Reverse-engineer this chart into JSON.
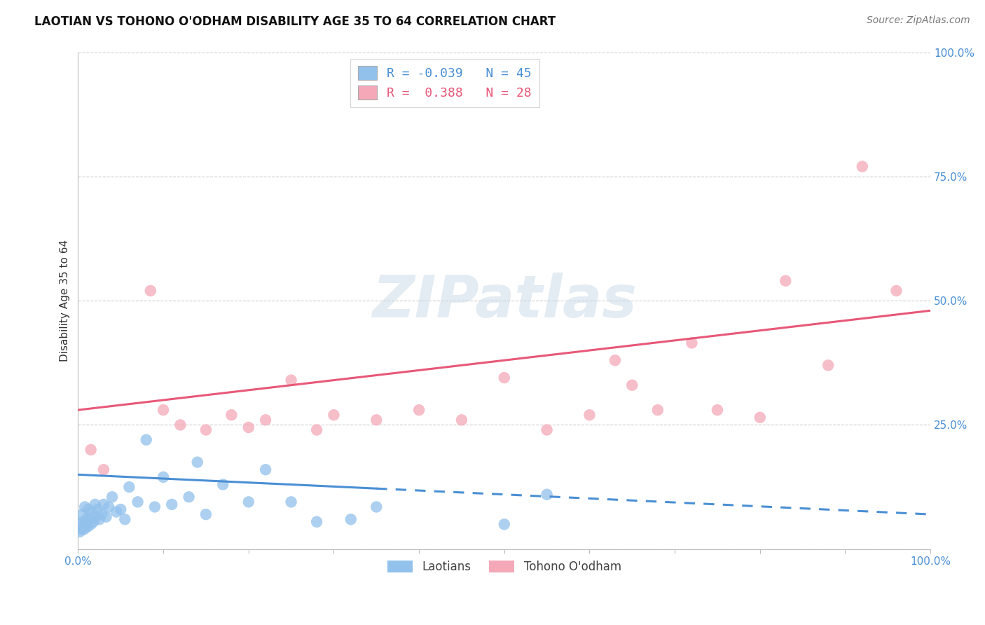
{
  "title": "LAOTIAN VS TOHONO O'ODHAM DISABILITY AGE 35 TO 64 CORRELATION CHART",
  "source": "Source: ZipAtlas.com",
  "ylabel": "Disability Age 35 to 64",
  "legend_label1": "Laotians",
  "legend_label2": "Tohono O'odham",
  "R1": -0.039,
  "N1": 45,
  "R2": 0.388,
  "N2": 28,
  "blue_color": "#92C1EC",
  "pink_color": "#F4A8B8",
  "blue_line_color": "#4A8FD4",
  "pink_line_color": "#E85878",
  "laotian_x": [
    0.2,
    0.3,
    0.4,
    0.5,
    0.6,
    0.7,
    0.8,
    0.9,
    1.0,
    1.1,
    1.2,
    1.3,
    1.5,
    1.6,
    1.8,
    2.0,
    2.1,
    2.3,
    2.5,
    2.8,
    3.0,
    3.3,
    3.6,
    4.0,
    4.5,
    5.0,
    5.5,
    6.0,
    7.0,
    8.0,
    9.0,
    10.0,
    11.0,
    13.0,
    14.0,
    15.0,
    17.0,
    20.0,
    22.0,
    25.0,
    28.0,
    32.0,
    35.0,
    50.0,
    55.0
  ],
  "laotian_y": [
    3.5,
    5.0,
    4.0,
    7.0,
    5.5,
    4.0,
    8.5,
    5.0,
    6.0,
    4.5,
    8.0,
    6.0,
    5.0,
    7.5,
    5.5,
    9.0,
    6.5,
    8.0,
    6.0,
    7.0,
    9.0,
    6.5,
    8.5,
    10.5,
    7.5,
    8.0,
    6.0,
    12.5,
    9.5,
    22.0,
    8.5,
    14.5,
    9.0,
    10.5,
    17.5,
    7.0,
    13.0,
    9.5,
    16.0,
    9.5,
    5.5,
    6.0,
    8.5,
    5.0,
    11.0
  ],
  "tohono_x": [
    1.5,
    3.0,
    8.5,
    10.0,
    12.0,
    15.0,
    18.0,
    20.0,
    22.0,
    25.0,
    28.0,
    30.0,
    35.0,
    40.0,
    45.0,
    50.0,
    55.0,
    60.0,
    63.0,
    65.0,
    68.0,
    72.0,
    75.0,
    80.0,
    83.0,
    88.0,
    92.0,
    96.0
  ],
  "tohono_y": [
    20.0,
    16.0,
    52.0,
    28.0,
    25.0,
    24.0,
    27.0,
    24.5,
    26.0,
    34.0,
    24.0,
    27.0,
    26.0,
    28.0,
    26.0,
    34.5,
    24.0,
    27.0,
    38.0,
    33.0,
    28.0,
    41.5,
    28.0,
    26.5,
    54.0,
    37.0,
    77.0,
    52.0
  ],
  "xlim": [
    0,
    100
  ],
  "ylim": [
    0,
    100
  ],
  "background_color": "#FFFFFF",
  "grid_color": "#C8C8C8",
  "watermark_color": "#C8D8E8",
  "title_fontsize": 12,
  "source_fontsize": 10,
  "tick_fontsize": 11,
  "ylabel_fontsize": 11
}
